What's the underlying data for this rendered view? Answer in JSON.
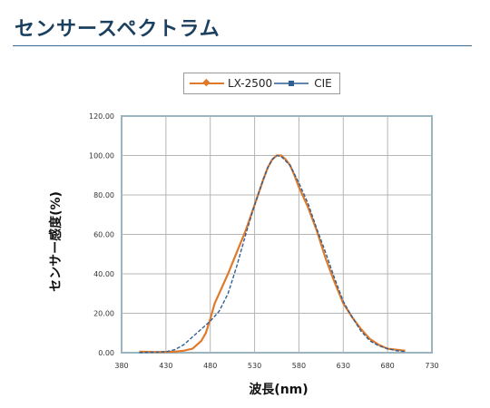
{
  "page": {
    "title": "センサースペクトラム"
  },
  "colors": {
    "title": "#1b3f5e",
    "lx2500": "#e07a2a",
    "cie": "#2f5f94",
    "frame": "#7eb3cc",
    "grid": "#b5b5b5"
  },
  "chart_data": {
    "type": "line",
    "xlabel": "波長(nm)",
    "ylabel": "センサー感度(%)",
    "xlim": [
      380,
      730
    ],
    "ylim": [
      0,
      120
    ],
    "xticks": [
      "380",
      "430",
      "480",
      "530",
      "580",
      "630",
      "680",
      "730"
    ],
    "yticks": [
      "0.00",
      "20.00",
      "40.00",
      "60.00",
      "80.00",
      "100.00",
      "120.00"
    ],
    "grid": true,
    "legend_position": "top",
    "series": [
      {
        "name": "LX-2500",
        "style": "solid",
        "x": [
          400,
          420,
          440,
          450,
          460,
          470,
          475,
          480,
          485,
          490,
          500,
          510,
          520,
          530,
          540,
          545,
          550,
          555,
          560,
          565,
          570,
          575,
          580,
          590,
          600,
          610,
          620,
          630,
          640,
          650,
          660,
          670,
          680,
          690,
          700
        ],
        "y": [
          0.5,
          0.3,
          0.5,
          1,
          2,
          6,
          10,
          17,
          25,
          30,
          40,
          51,
          62,
          75,
          88,
          94,
          98,
          100,
          100,
          98,
          95,
          90,
          84,
          74,
          62,
          48,
          36,
          25,
          18,
          12,
          7,
          4,
          2,
          1.5,
          1
        ]
      },
      {
        "name": "CIE",
        "style": "dashed",
        "x": [
          400,
          420,
          430,
          440,
          450,
          460,
          470,
          480,
          490,
          500,
          510,
          520,
          530,
          540,
          545,
          550,
          555,
          560,
          570,
          580,
          590,
          600,
          610,
          620,
          630,
          640,
          650,
          660,
          670,
          680,
          690,
          700
        ],
        "y": [
          0.1,
          0.3,
          0.5,
          1.5,
          4,
          8,
          12,
          16,
          21,
          30,
          44,
          60,
          75,
          88,
          94,
          98,
          100,
          99.5,
          95,
          86,
          76,
          63,
          51,
          38,
          26,
          18,
          11,
          6,
          3.5,
          2,
          1,
          0.5
        ]
      }
    ]
  }
}
